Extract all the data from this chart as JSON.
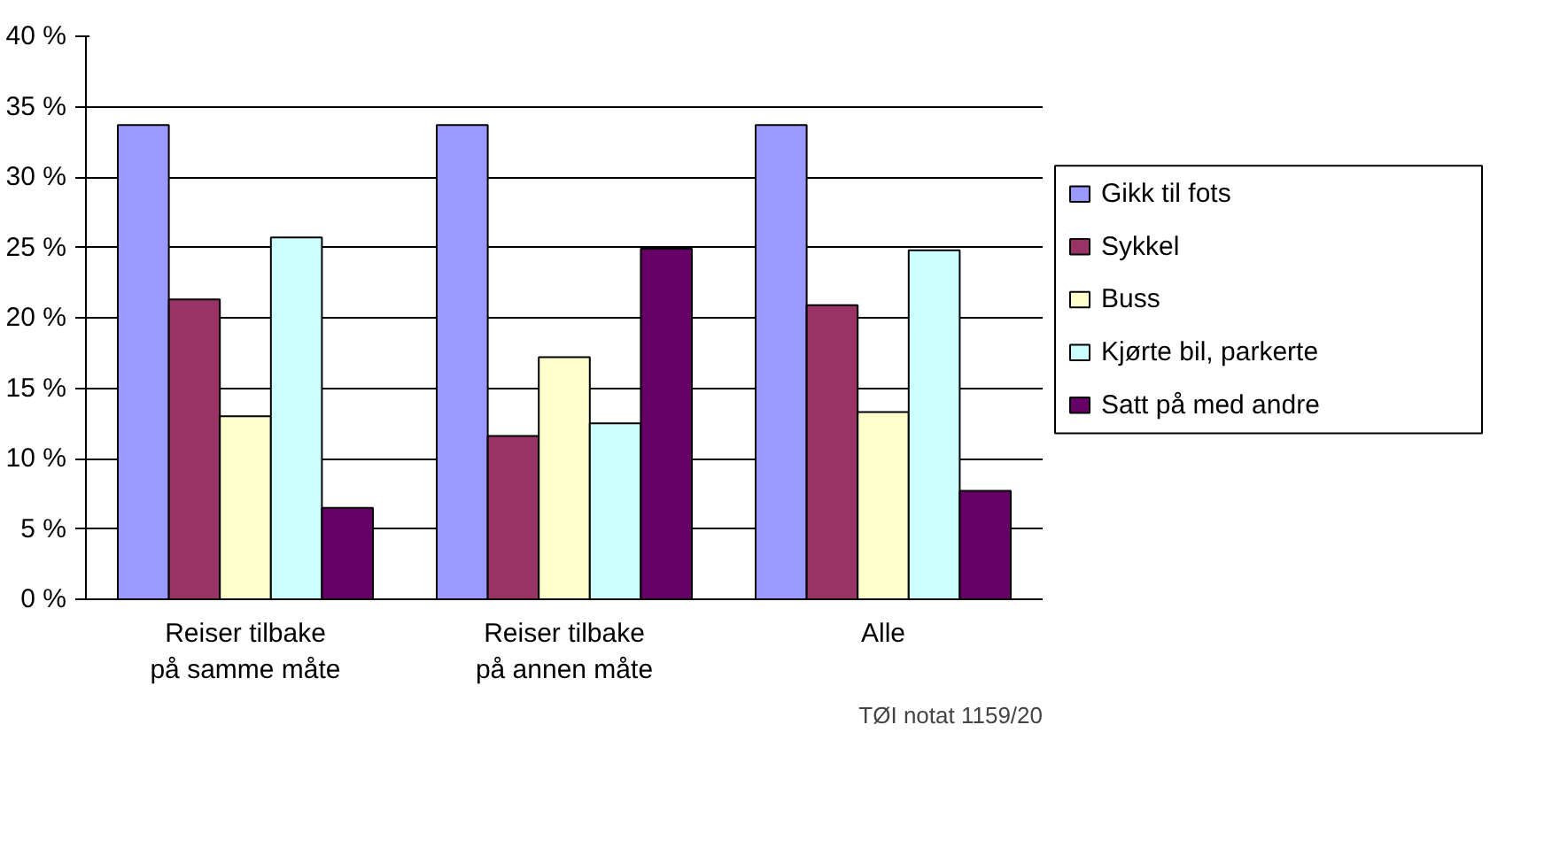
{
  "chart_data": {
    "type": "bar",
    "categories": [
      "Reiser tilbake på samme måte",
      "Reiser tilbake på annen måte",
      "Alle"
    ],
    "series": [
      {
        "name": "Gikk til fots",
        "color": "#9999ff",
        "values": [
          33.7,
          33.7,
          33.7
        ]
      },
      {
        "name": "Sykkel",
        "color": "#993366",
        "values": [
          21.3,
          11.6,
          20.9
        ]
      },
      {
        "name": "Buss",
        "color": "#ffffcc",
        "values": [
          13.0,
          17.2,
          13.3
        ]
      },
      {
        "name": "Kjørte bil, parkerte",
        "color": "#ccffff",
        "values": [
          25.7,
          12.5,
          24.8
        ]
      },
      {
        "name": "Satt på med andre",
        "color": "#660066",
        "values": [
          6.5,
          24.9,
          7.7
        ]
      }
    ],
    "ylim": [
      0,
      40
    ],
    "yticks": [
      {
        "value": 0,
        "label": "0 %"
      },
      {
        "value": 5,
        "label": "5 %"
      },
      {
        "value": 10,
        "label": "10 %"
      },
      {
        "value": 15,
        "label": "15 %"
      },
      {
        "value": 20,
        "label": "20 %"
      },
      {
        "value": 25,
        "label": "25 %"
      },
      {
        "value": 30,
        "label": "30 %"
      },
      {
        "value": 35,
        "label": "35 %"
      },
      {
        "value": 40,
        "label": "40 %"
      }
    ],
    "grid": "y",
    "legend": "right",
    "annotations": [
      "TØI notat 1159/20"
    ]
  }
}
